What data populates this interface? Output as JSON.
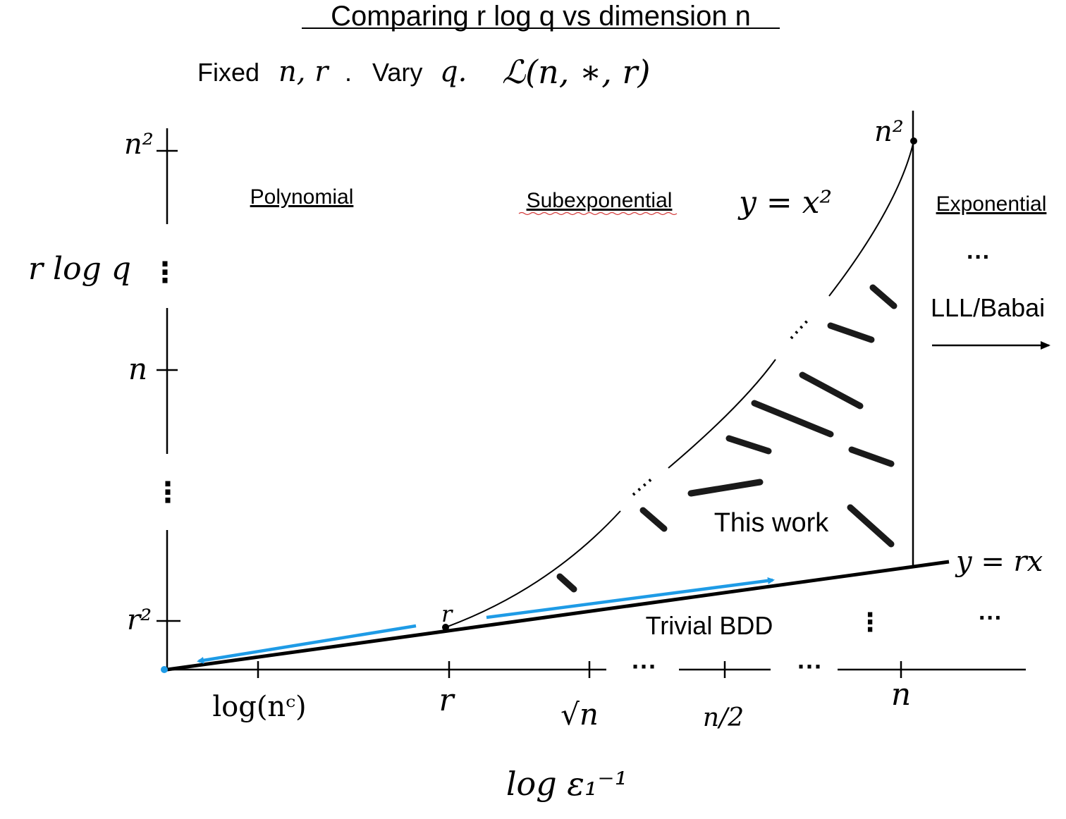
{
  "title": "Comparing r log q vs dimension n",
  "subtitle": {
    "fixed_label": "Fixed",
    "fixed_vars": "n, r",
    "dot": ".",
    "vary_label": "Vary",
    "vary_var": "q.",
    "lattice_symbol": "ℒ(n, ∗, r)"
  },
  "y_axis": {
    "label": "r log q",
    "ticks": [
      "n²",
      "n",
      "r²"
    ],
    "ellipsis": "⋮"
  },
  "x_axis": {
    "label": "log ε₁⁻¹",
    "ticks": [
      "log(nᶜ)",
      "r",
      "√n",
      "n/2",
      "n"
    ],
    "gap_ellipsis": "···"
  },
  "regions": {
    "polynomial": "Polynomial",
    "subexponential": "Subexponential",
    "exponential": "Exponential",
    "this_work": "This work",
    "trivial_bdd": "Trivial BDD",
    "lll_babai": "LLL/Babai",
    "more_ellipsis": "···"
  },
  "curves": {
    "parabola": "y = x²",
    "line": "y = rx",
    "point_r": "r",
    "point_n2": "n²"
  },
  "colors": {
    "arrow": "#1e9be6",
    "ink": "#000000",
    "hatch": "#1a1a1a"
  }
}
